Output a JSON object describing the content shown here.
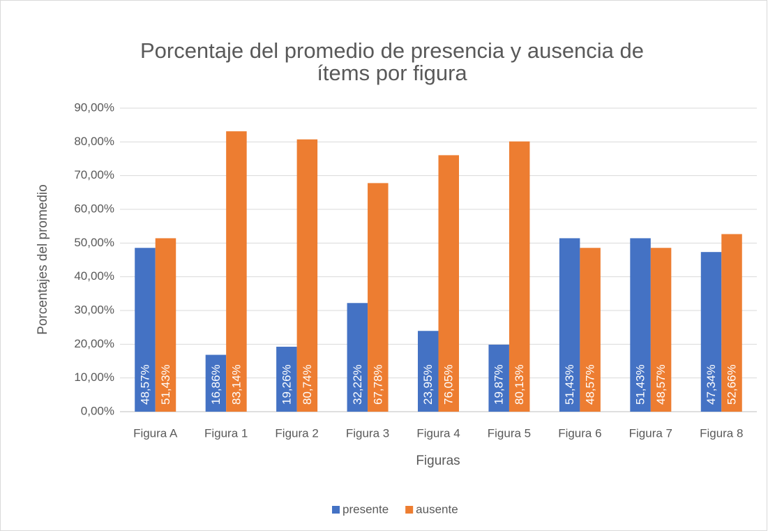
{
  "chart_data": {
    "type": "bar",
    "title": "Porcentaje del promedio de presencia y ausencia de",
    "title_line2": "ítems por figura",
    "x_label": "Figuras",
    "y_label": "Porcentajes del promedio",
    "categories": [
      "Figura A",
      "Figura 1",
      "Figura 2",
      "Figura 3",
      "Figura 4",
      "Figura 5",
      "Figura 6",
      "Figura 7",
      "Figura 8"
    ],
    "series": [
      {
        "name": "presente",
        "color": "#4472c4",
        "values": [
          48.57,
          16.86,
          19.26,
          32.22,
          23.95,
          19.87,
          51.43,
          51.43,
          47.34
        ],
        "value_labels": [
          "48,57%",
          "16,86%",
          "19,26%",
          "32,22%",
          "23,95%",
          "19,87%",
          "51,43%",
          "51,43%",
          "47,34%"
        ]
      },
      {
        "name": "ausente",
        "color": "#ed7d31",
        "values": [
          51.43,
          83.14,
          80.74,
          67.78,
          76.05,
          80.13,
          48.57,
          48.57,
          52.66
        ],
        "value_labels": [
          "51,43%",
          "83,14%",
          "80,74%",
          "67,78%",
          "76,05%",
          "80,13%",
          "48,57%",
          "48,57%",
          "52,66%"
        ]
      }
    ],
    "ylim": [
      0,
      90
    ],
    "yticks": [
      {
        "value": 0,
        "label": "0,00%"
      },
      {
        "value": 10,
        "label": "10,00%"
      },
      {
        "value": 20,
        "label": "20,00%"
      },
      {
        "value": 30,
        "label": "30,00%"
      },
      {
        "value": 40,
        "label": "40,00%"
      },
      {
        "value": 50,
        "label": "50,00%"
      },
      {
        "value": 60,
        "label": "60,00%"
      },
      {
        "value": 70,
        "label": "70,00%"
      },
      {
        "value": 80,
        "label": "80,00%"
      },
      {
        "value": 90,
        "label": "90,00%"
      }
    ],
    "grid": true,
    "legend": "bottom"
  }
}
